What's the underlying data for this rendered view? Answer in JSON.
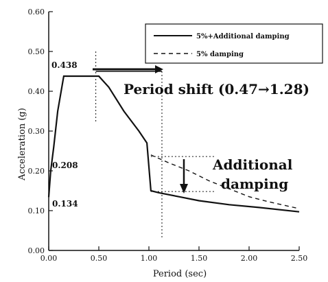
{
  "chart_data": {
    "type": "line",
    "xlabel": "Period (sec)",
    "ylabel": "Acceleration (g)",
    "xlim": [
      0,
      2.5
    ],
    "ylim": [
      0,
      0.6
    ],
    "x_ticks": [
      {
        "value": 0.0,
        "label": "0.00"
      },
      {
        "value": 0.5,
        "label": "0.50"
      },
      {
        "value": 1.0,
        "label": "1.00"
      },
      {
        "value": 1.5,
        "label": "1.50"
      },
      {
        "value": 2.0,
        "label": "2.00"
      },
      {
        "value": 2.5,
        "label": "2.50"
      }
    ],
    "y_ticks": [
      {
        "value": 0.0,
        "label": "0.00"
      },
      {
        "value": 0.1,
        "label": "0.10"
      },
      {
        "value": 0.2,
        "label": "0.20"
      },
      {
        "value": 0.3,
        "label": "0.30"
      },
      {
        "value": 0.4,
        "label": "0.40"
      },
      {
        "value": 0.5,
        "label": "0.50"
      },
      {
        "value": 0.6,
        "label": "0.60"
      }
    ],
    "series": [
      {
        "name": "5%+Additional damping",
        "style": "solid",
        "x": [
          0.0,
          0.02,
          0.05,
          0.09,
          0.15,
          0.5,
          0.6,
          0.75,
          0.9,
          0.98,
          1.02,
          1.1,
          1.3,
          1.5,
          1.8,
          2.1,
          2.5
        ],
        "y": [
          0.134,
          0.2,
          0.26,
          0.35,
          0.438,
          0.438,
          0.41,
          0.35,
          0.3,
          0.27,
          0.15,
          0.145,
          0.135,
          0.125,
          0.115,
          0.108,
          0.097
        ]
      },
      {
        "name": "5% damping",
        "style": "dashed",
        "x": [
          1.02,
          1.2,
          1.4,
          1.6,
          1.8,
          2.0,
          2.2,
          2.5
        ],
        "y": [
          0.24,
          0.22,
          0.2,
          0.175,
          0.155,
          0.135,
          0.122,
          0.105
        ]
      }
    ],
    "annotations": {
      "level_438": "0.438",
      "level_208": "0.208",
      "level_134": "0.134",
      "period_shift": "Period shift (0.47→1.28)",
      "additional_damping_line1": "Additional",
      "additional_damping_line2": "damping"
    },
    "legend": {
      "placement": "top-right"
    }
  }
}
